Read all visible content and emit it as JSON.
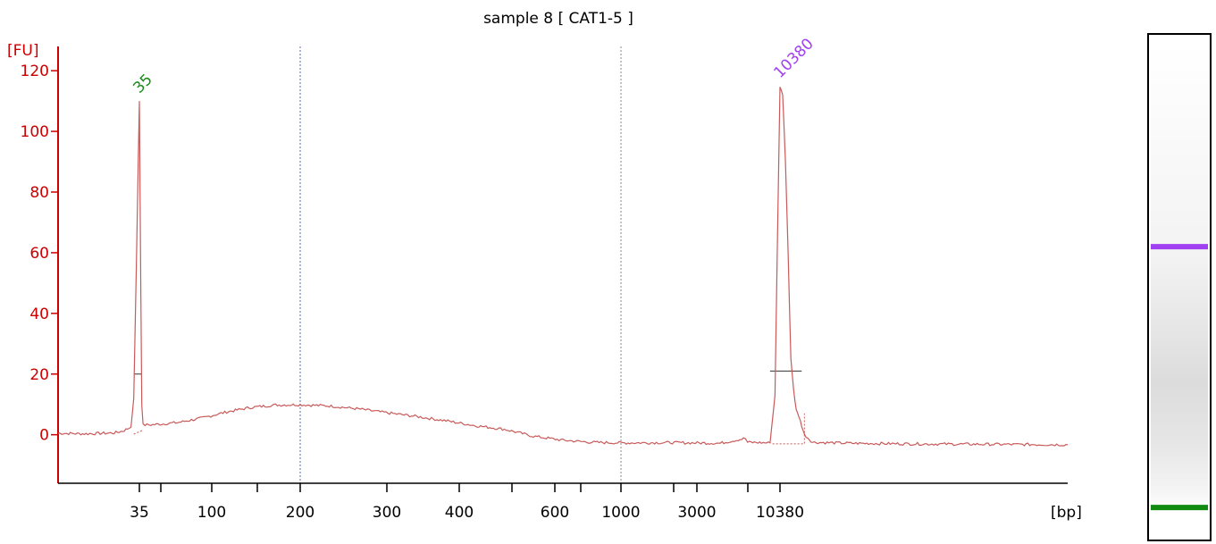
{
  "chart_data": {
    "type": "line",
    "title": "sample 8  [ CAT1-5 ]",
    "ylabel": "[FU]",
    "xlabel": "[bp]",
    "ylim": [
      -16,
      128
    ],
    "y_ticks": [
      0,
      20,
      40,
      60,
      80,
      100,
      120
    ],
    "x_tick_labels": [
      "35",
      "100",
      "200",
      "300",
      "400",
      "600",
      "1000",
      "3000",
      "10380"
    ],
    "axis_color": "#cc0000",
    "trace_color": "#c85a5a",
    "peaks": [
      {
        "label": "35",
        "x": "35",
        "fu": 110,
        "color": "#1a8a1a"
      },
      {
        "label": "10380",
        "x": "10380",
        "fu": 115,
        "color": "#a040f0"
      }
    ],
    "series": [
      {
        "points": [
          [
            -20,
            0.5
          ],
          [
            -10,
            0.3
          ],
          [
            0,
            0.6
          ],
          [
            3,
            1.2
          ],
          [
            6,
            2.5
          ],
          [
            7,
            12
          ],
          [
            8,
            60
          ],
          [
            9,
            110
          ],
          [
            10,
            55
          ],
          [
            11,
            10
          ],
          [
            12,
            3.2
          ],
          [
            20,
            3.3
          ],
          [
            40,
            4
          ],
          [
            60,
            5.5
          ],
          [
            80,
            7.5
          ],
          [
            100,
            9
          ],
          [
            120,
            9.8
          ],
          [
            140,
            9.9
          ],
          [
            160,
            9.5
          ],
          [
            180,
            8.5
          ],
          [
            200,
            7.2
          ],
          [
            220,
            6
          ],
          [
            240,
            4.6
          ],
          [
            260,
            3
          ],
          [
            280,
            1.8
          ],
          [
            300,
            -0.5
          ],
          [
            320,
            -1.8
          ],
          [
            340,
            -2.5
          ],
          [
            360,
            -2.7
          ],
          [
            380,
            -2.6
          ],
          [
            400,
            -2.8
          ],
          [
            410,
            -1.2
          ],
          [
            411,
            -2.5
          ],
          [
            420,
            -2.7
          ],
          [
            422,
            13
          ],
          [
            423,
            65
          ],
          [
            424,
            115
          ],
          [
            425,
            112
          ],
          [
            426,
            90
          ],
          [
            427,
            60
          ],
          [
            428,
            25
          ],
          [
            429,
            15
          ],
          [
            430,
            8
          ],
          [
            431,
            6
          ],
          [
            432,
            3
          ],
          [
            433,
            0
          ],
          [
            436,
            -2.5
          ],
          [
            450,
            -2.8
          ],
          [
            470,
            -3
          ],
          [
            490,
            -3.1
          ],
          [
            510,
            -3.2
          ],
          [
            530,
            -3.3
          ]
        ]
      }
    ],
    "gel": {
      "bands": [
        {
          "name": "upper",
          "fraction": 0.42,
          "color": "#a040f0"
        },
        {
          "name": "lower",
          "fraction": 0.935,
          "color": "#108a10"
        }
      ]
    }
  }
}
